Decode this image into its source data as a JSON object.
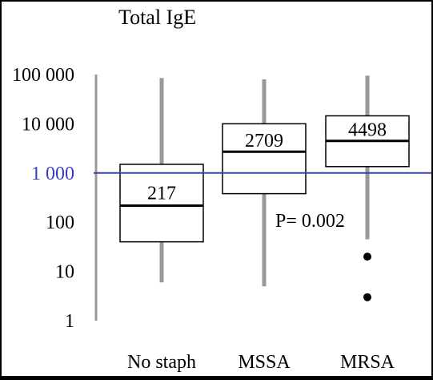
{
  "chart_data": {
    "type": "boxplot",
    "title": "Total IgE",
    "y_scale": "log",
    "ylim": [
      1,
      100000
    ],
    "yticks": [
      {
        "value": 100000,
        "label": "100 000"
      },
      {
        "value": 10000,
        "label": "10 000"
      },
      {
        "value": 1000,
        "label": "1 000"
      },
      {
        "value": 100,
        "label": "100"
      },
      {
        "value": 10,
        "label": "10"
      },
      {
        "value": 1,
        "label": "1"
      }
    ],
    "reference_line": {
      "value": 1000,
      "color": "#3b3bb8"
    },
    "categories": [
      "No staph",
      "MSSA",
      "MRSA"
    ],
    "boxes": [
      {
        "name": "No staph",
        "whisker_low": 6,
        "q1": 40,
        "median": 217,
        "q3": 1500,
        "whisker_high": 85000,
        "median_label": "217",
        "outliers": []
      },
      {
        "name": "MSSA",
        "whisker_low": 5,
        "q1": 380,
        "median": 2709,
        "q3": 10000,
        "whisker_high": 80000,
        "median_label": "2709",
        "outliers": []
      },
      {
        "name": "MRSA",
        "whisker_low": 45,
        "q1": 1350,
        "median": 4498,
        "q3": 14500,
        "whisker_high": 95000,
        "median_label": "4498",
        "outliers": [
          20,
          3
        ]
      }
    ],
    "annotation": "P= 0.002",
    "colors": {
      "box": "#000000",
      "whisker": "#999999",
      "outlier": "#000000",
      "axis": "#999999"
    }
  }
}
